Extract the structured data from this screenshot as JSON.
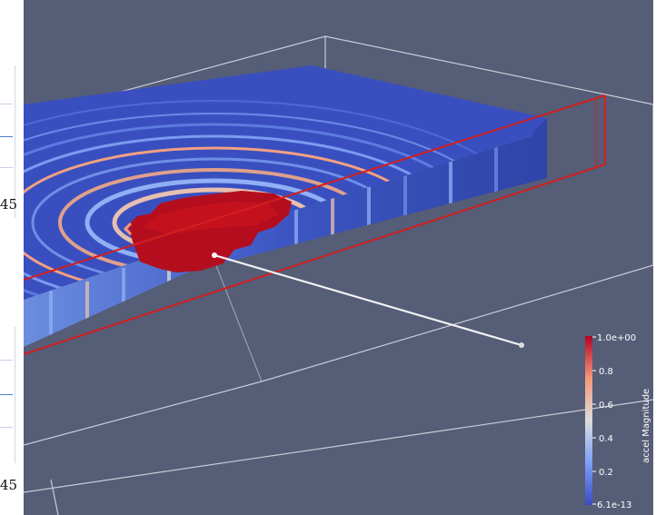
{
  "left_panel": {
    "tick_labels": [
      "45",
      "45"
    ]
  },
  "viewport": {
    "background": "#555d77",
    "outline_color": "#c9ccd6",
    "slice_outline_color": "#d21f1f",
    "probe_line_color": "#f2f2f2"
  },
  "colorbar": {
    "title": "accel Magnitude",
    "max_label": "1.0e+00",
    "min_label": "6.1e-13",
    "tick_labels": [
      "0.8",
      "0.6",
      "0.4",
      "0.2"
    ],
    "colormap": "Cool to Warm",
    "stops": [
      "#3b4cc0",
      "#7b9ff9",
      "#dddddd",
      "#f39879",
      "#b40426"
    ]
  }
}
